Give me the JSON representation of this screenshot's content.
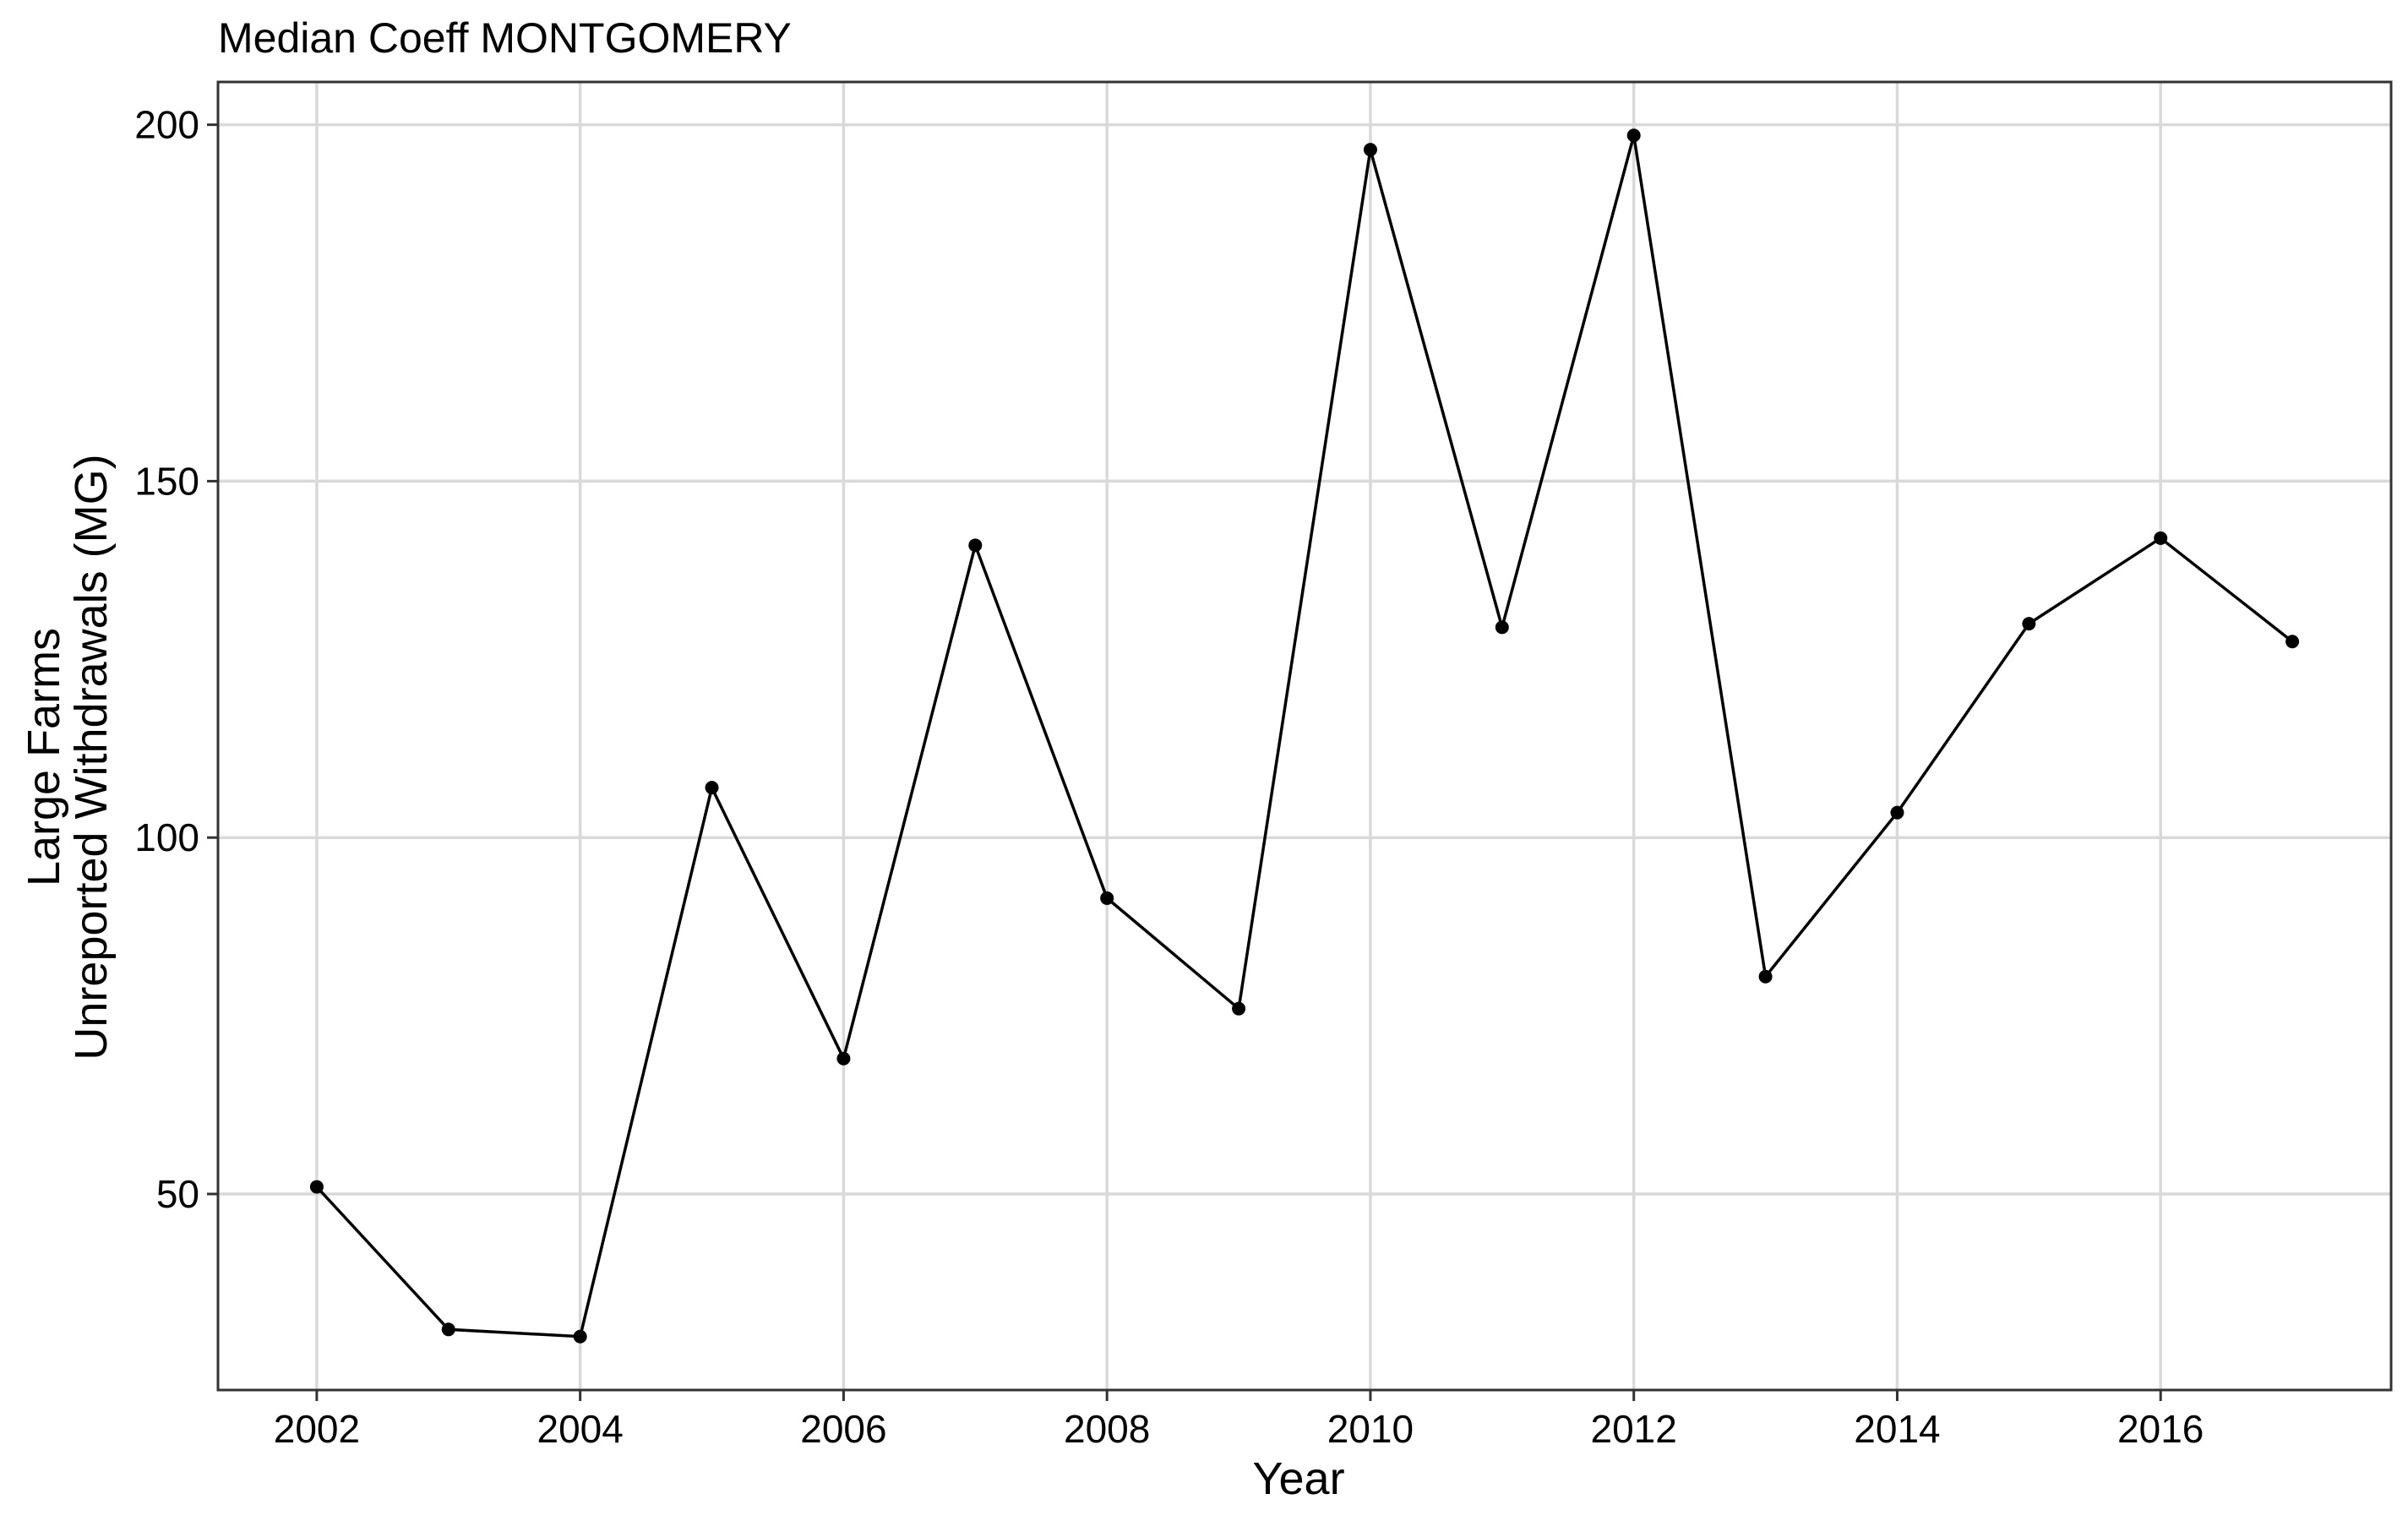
{
  "chart_data": {
    "type": "line",
    "title": "Median Coeff MONTGOMERY",
    "xlabel": "Year",
    "ylabel_lines": [
      "Large Farms",
      "Unreported Withdrawals (MG)"
    ],
    "x": [
      2002,
      2003,
      2004,
      2005,
      2006,
      2007,
      2008,
      2009,
      2010,
      2011,
      2012,
      2013,
      2014,
      2015,
      2016,
      2017
    ],
    "y": [
      51,
      31,
      30,
      107,
      69,
      141,
      91.5,
      76,
      196.5,
      129.5,
      198.5,
      80.5,
      103.5,
      130,
      142,
      127.5
    ],
    "x_ticks": [
      "2002",
      "2004",
      "2006",
      "2008",
      "2010",
      "2012",
      "2014",
      "2016"
    ],
    "x_tick_values": [
      2002,
      2004,
      2006,
      2008,
      2010,
      2012,
      2014,
      2016
    ],
    "y_ticks": [
      "50",
      "100",
      "150",
      "200"
    ],
    "y_tick_values": [
      50,
      100,
      150,
      200
    ],
    "xlim": [
      2001.25,
      2017.75
    ],
    "ylim": [
      22.5,
      206
    ],
    "grid": true,
    "legend": "none",
    "line_color": "#000000",
    "point_color": "#000000",
    "grid_color": "#d9d9d9",
    "background_color": "#ffffff"
  }
}
